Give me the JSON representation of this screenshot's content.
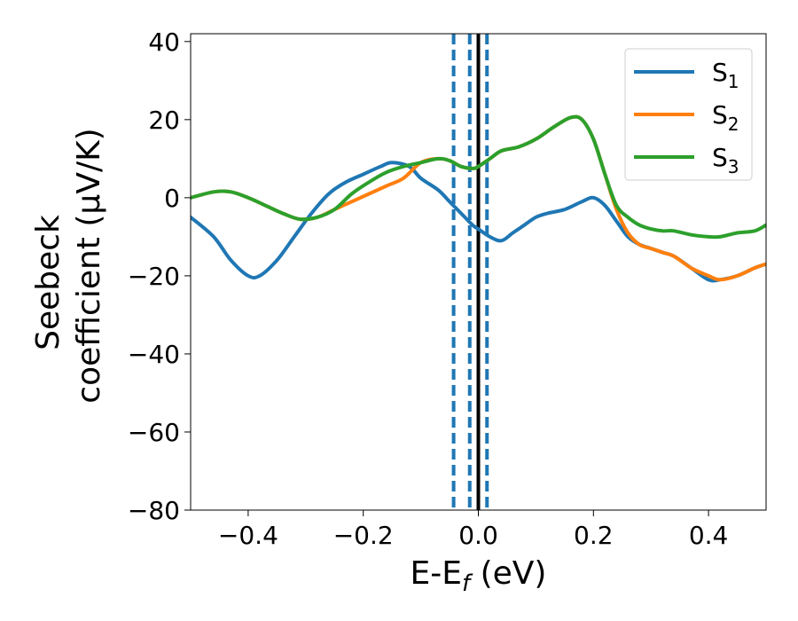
{
  "chart_data": {
    "type": "line",
    "xlabel_main": "E-E",
    "xlabel_sub": "f",
    "xlabel_unit": " (eV)",
    "ylabel_line1": "Seebeck",
    "ylabel_line2": "coefficient  (μV/K)",
    "xlim": [
      -0.5,
      0.5
    ],
    "ylim": [
      -80,
      42
    ],
    "xticks": [
      -0.4,
      -0.2,
      0.0,
      0.2,
      0.4
    ],
    "xtick_labels": [
      "−0.4",
      "−0.2",
      "0.0",
      "0.2",
      "0.4"
    ],
    "yticks": [
      40,
      20,
      0,
      -20,
      -40,
      -60,
      -80
    ],
    "ytick_labels": [
      "40",
      "20",
      "0",
      "−20",
      "−40",
      "−60",
      "−80"
    ],
    "vlines": [
      {
        "x": -0.043,
        "style": "dashed",
        "color": "#1f77b4"
      },
      {
        "x": -0.015,
        "style": "dashed",
        "color": "#1f77b4"
      },
      {
        "x": 0.0,
        "style": "solid",
        "color": "#000000"
      },
      {
        "x": 0.015,
        "style": "dashed",
        "color": "#1f77b4"
      }
    ],
    "series": [
      {
        "name": "S",
        "sub": "1",
        "color": "#1f77b4",
        "x": [
          -0.5,
          -0.46,
          -0.43,
          -0.4,
          -0.38,
          -0.35,
          -0.32,
          -0.29,
          -0.26,
          -0.23,
          -0.2,
          -0.17,
          -0.15,
          -0.12,
          -0.1,
          -0.07,
          -0.05,
          -0.03,
          -0.01,
          0.0,
          0.02,
          0.04,
          0.06,
          0.08,
          0.1,
          0.12,
          0.15,
          0.18,
          0.2,
          0.22,
          0.24,
          0.26,
          0.28,
          0.3,
          0.32,
          0.34,
          0.37,
          0.4,
          0.42,
          0.45,
          0.48,
          0.5
        ],
        "values": [
          -5,
          -10,
          -16,
          -20,
          -20,
          -16,
          -10,
          -4,
          1,
          4,
          6,
          8,
          9,
          8,
          5,
          2,
          -1,
          -4,
          -7,
          -8,
          -10,
          -11,
          -9,
          -7,
          -5,
          -4,
          -3,
          -1,
          0,
          -2,
          -6,
          -10,
          -12,
          -13,
          -14,
          -15,
          -18,
          -21,
          -21,
          -20,
          -18,
          -17
        ]
      },
      {
        "name": "S",
        "sub": "2",
        "color": "#ff7f0e",
        "x": [
          -0.5,
          -0.46,
          -0.43,
          -0.4,
          -0.37,
          -0.34,
          -0.31,
          -0.28,
          -0.25,
          -0.22,
          -0.19,
          -0.16,
          -0.13,
          -0.1,
          -0.07,
          -0.05,
          -0.03,
          -0.01,
          0.0,
          0.02,
          0.04,
          0.07,
          0.1,
          0.13,
          0.16,
          0.18,
          0.2,
          0.22,
          0.24,
          0.26,
          0.28,
          0.3,
          0.32,
          0.34,
          0.37,
          0.4,
          0.42,
          0.45,
          0.48,
          0.5
        ],
        "values": [
          0,
          1.5,
          1.5,
          0,
          -2,
          -4,
          -5.5,
          -5,
          -3,
          -1,
          1,
          3,
          5,
          9,
          10,
          9.5,
          8,
          7.5,
          8,
          10,
          12,
          13,
          15,
          18,
          20.5,
          20,
          15,
          6,
          -3,
          -9,
          -12,
          -13,
          -14,
          -15,
          -18,
          -20,
          -21,
          -20,
          -18,
          -17
        ]
      },
      {
        "name": "S",
        "sub": "3",
        "color": "#2ca02c",
        "x": [
          -0.5,
          -0.46,
          -0.43,
          -0.4,
          -0.37,
          -0.34,
          -0.31,
          -0.28,
          -0.25,
          -0.22,
          -0.19,
          -0.16,
          -0.13,
          -0.1,
          -0.07,
          -0.05,
          -0.03,
          -0.01,
          0.0,
          0.02,
          0.04,
          0.07,
          0.1,
          0.13,
          0.16,
          0.18,
          0.2,
          0.22,
          0.24,
          0.26,
          0.28,
          0.3,
          0.32,
          0.34,
          0.37,
          0.4,
          0.42,
          0.45,
          0.48,
          0.5
        ],
        "values": [
          0,
          1.5,
          1.5,
          0,
          -2,
          -4,
          -5.5,
          -5,
          -3,
          1,
          4,
          6.5,
          8,
          9,
          10,
          9.5,
          8,
          7.5,
          8,
          10,
          12,
          13,
          15,
          18,
          20.5,
          20,
          15,
          6,
          -2,
          -5,
          -7,
          -8,
          -8.5,
          -8.5,
          -9.5,
          -10,
          -10,
          -9,
          -8.5,
          -7
        ]
      }
    ],
    "legend": {
      "position": "top-right"
    }
  }
}
